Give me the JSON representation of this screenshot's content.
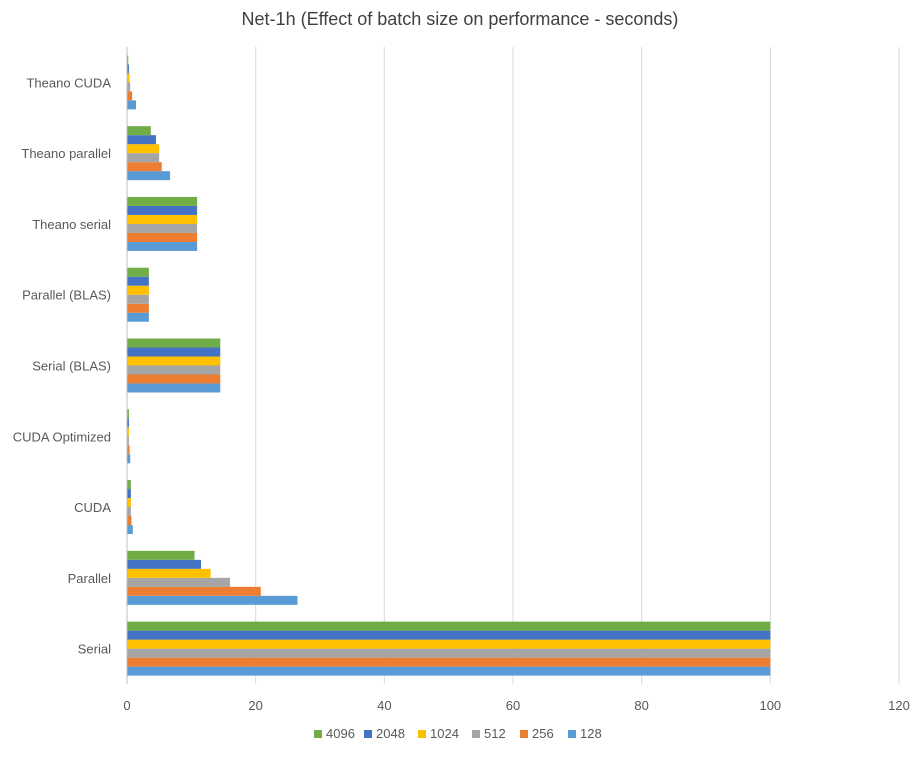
{
  "chart_data": {
    "type": "bar",
    "orientation": "horizontal",
    "title": "Net-1h (Effect of batch size on performance - seconds)",
    "xlabel": "",
    "ylabel": "",
    "xlim": [
      0,
      120
    ],
    "xticks": [
      0,
      20,
      40,
      60,
      80,
      100,
      120
    ],
    "grid": true,
    "legend_position": "bottom",
    "categories": [
      "Serial",
      "Parallel",
      "CUDA",
      "CUDA Optimized",
      "Serial (BLAS)",
      "Parallel (BLAS)",
      "Theano serial",
      "Theano parallel",
      "Theano CUDA"
    ],
    "series": [
      {
        "name": "128",
        "color": "#5B9BD5",
        "values": [
          100,
          26.5,
          0.9,
          0.5,
          14.5,
          3.4,
          10.9,
          6.7,
          1.4
        ]
      },
      {
        "name": "256",
        "color": "#ED7D31",
        "values": [
          100,
          20.8,
          0.7,
          0.4,
          14.5,
          3.4,
          10.9,
          5.4,
          0.8
        ]
      },
      {
        "name": "512",
        "color": "#A5A5A5",
        "values": [
          100,
          16.0,
          0.6,
          0.3,
          14.5,
          3.4,
          10.9,
          5.0,
          0.5
        ]
      },
      {
        "name": "1024",
        "color": "#FFC000",
        "values": [
          100,
          13.0,
          0.6,
          0.3,
          14.5,
          3.4,
          10.9,
          5.0,
          0.4
        ]
      },
      {
        "name": "2048",
        "color": "#4472C4",
        "values": [
          100,
          11.5,
          0.6,
          0.3,
          14.5,
          3.4,
          10.9,
          4.5,
          0.3
        ]
      },
      {
        "name": "4096",
        "color": "#70AD47",
        "values": [
          100,
          10.5,
          0.6,
          0.3,
          14.5,
          3.4,
          10.9,
          3.7,
          0.2
        ]
      }
    ],
    "legend_order": [
      "4096",
      "2048",
      "1024",
      "512",
      "256",
      "128"
    ]
  }
}
